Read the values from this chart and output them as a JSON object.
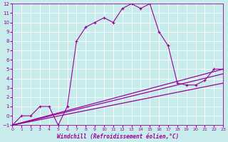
{
  "xlabel": "Windchill (Refroidissement éolien,°C)",
  "xlim": [
    0,
    23
  ],
  "ylim": [
    -1,
    12
  ],
  "xticks": [
    0,
    1,
    2,
    3,
    4,
    5,
    6,
    7,
    8,
    9,
    10,
    11,
    12,
    13,
    14,
    15,
    16,
    17,
    18,
    19,
    20,
    21,
    22,
    23
  ],
  "yticks": [
    -1,
    0,
    1,
    2,
    3,
    4,
    5,
    6,
    7,
    8,
    9,
    10,
    11,
    12
  ],
  "bg_color": "#c8ecec",
  "line_color": "#990099",
  "grid_color": "#ffffff",
  "line1_x": [
    0,
    1,
    2,
    3,
    4,
    5,
    6,
    7,
    8,
    9,
    10,
    11,
    12,
    13,
    14,
    15,
    16,
    17,
    18,
    19,
    20,
    21,
    22,
    23
  ],
  "line1_y": [
    -1,
    0,
    0,
    1,
    1,
    -1,
    1,
    8,
    9.5,
    10,
    10.5,
    10,
    11.5,
    12,
    11.5,
    12,
    9,
    7.5,
    3.5,
    3.3,
    3.3,
    3.8,
    5,
    5
  ],
  "line2_x": [
    0,
    23
  ],
  "line2_y": [
    -1,
    5
  ],
  "line3_x": [
    0,
    23
  ],
  "line3_y": [
    -1,
    4.5
  ],
  "line4_x": [
    0,
    23
  ],
  "line4_y": [
    -1,
    3.5
  ],
  "marker_x": [
    0,
    1,
    2,
    3,
    4,
    5,
    6,
    7,
    8,
    9,
    10,
    11,
    12,
    13,
    14,
    15,
    16,
    17,
    18,
    19,
    20,
    21,
    22,
    23
  ],
  "marker_y": [
    -1,
    0,
    0,
    1,
    1,
    -1,
    1,
    8,
    9.5,
    10,
    10.5,
    10,
    11.5,
    12,
    11.5,
    12,
    9,
    7.5,
    3.5,
    3.3,
    3.3,
    3.8,
    5,
    5
  ]
}
